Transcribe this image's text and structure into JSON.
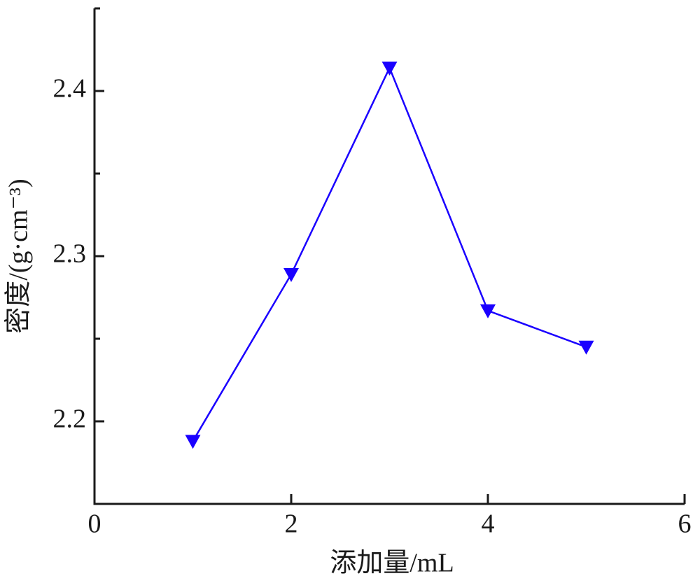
{
  "chart_data": {
    "type": "line",
    "x_label": "添加量/mL",
    "y_label": "密度/(g·cm⁻³)",
    "x": [
      1,
      2,
      3,
      4,
      5
    ],
    "values": [
      2.188,
      2.289,
      2.414,
      2.267,
      2.245
    ],
    "color": "#1a00ff",
    "marker": "triangle-down",
    "xlim": [
      0,
      6
    ],
    "xticks": [
      0,
      2,
      4,
      6
    ],
    "ylim": [
      2.15,
      2.45
    ],
    "yticks": [
      2.2,
      2.3,
      2.4
    ],
    "yminorticks": [
      2.25,
      2.35,
      2.45
    ]
  }
}
